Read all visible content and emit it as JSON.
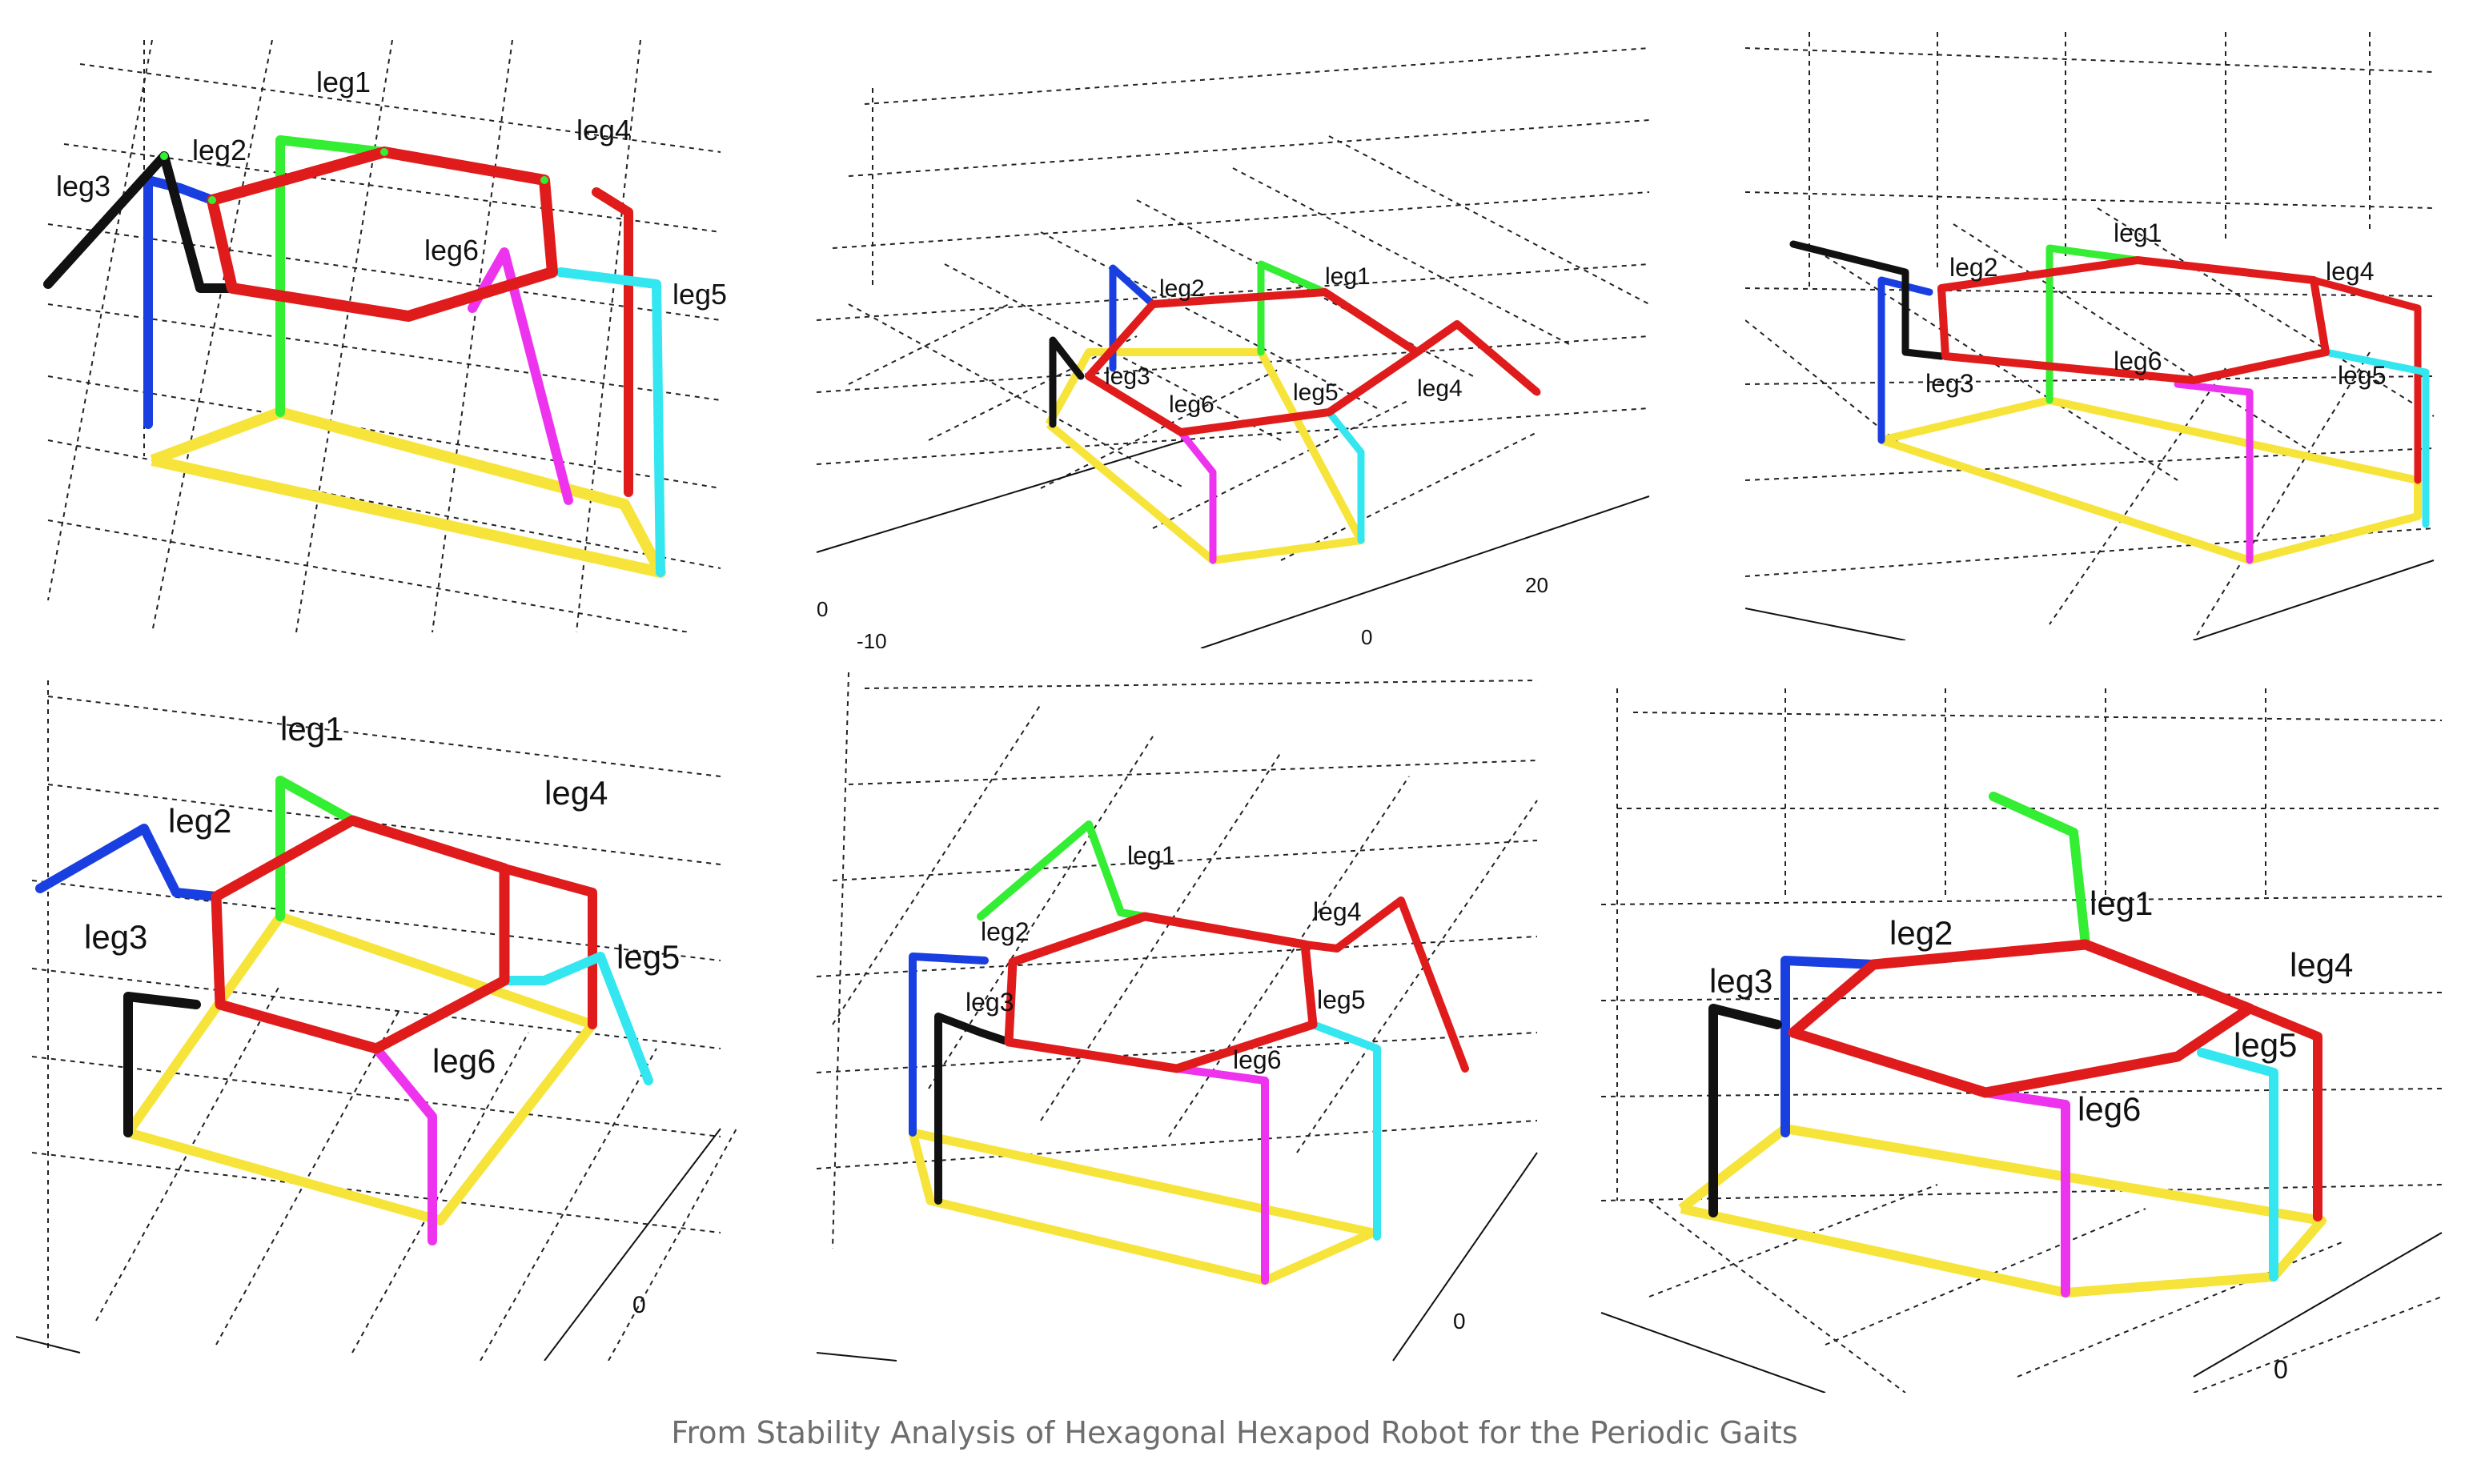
{
  "caption": "From Stability Analysis of Hexagonal Hexapod Robot for the Periodic Gaits",
  "colors": {
    "leg1": "#33ee33",
    "leg2": "#1a3fe0",
    "leg3": "#111111",
    "leg4": "#e01b1b",
    "leg5": "#33e6f0",
    "leg6": "#ee33ee",
    "body": "#e01b1b",
    "support_polygon": "#f7e43a",
    "grid": "#222222"
  },
  "panels": [
    {
      "id": "top-left",
      "labels": {
        "leg1": "leg1",
        "leg2": "leg2",
        "leg3": "leg3",
        "leg4": "leg4",
        "leg5": "leg5",
        "leg6": "leg6"
      },
      "ticks": []
    },
    {
      "id": "top-middle",
      "labels": {
        "leg1": "leg1",
        "leg2": "leg2",
        "leg3": "leg3",
        "leg4": "leg4",
        "leg5": "leg5",
        "leg6": "leg6"
      },
      "ticks": [
        "0",
        "-10",
        "0",
        "20"
      ]
    },
    {
      "id": "top-right",
      "labels": {
        "leg1": "leg1",
        "leg2": "leg2",
        "leg3": "leg3",
        "leg4": "leg4",
        "leg5": "leg5",
        "leg6": "leg6"
      },
      "ticks": []
    },
    {
      "id": "bottom-left",
      "labels": {
        "leg1": "leg1",
        "leg2": "leg2",
        "leg3": "leg3",
        "leg4": "leg4",
        "leg5": "leg5",
        "leg6": "leg6"
      },
      "ticks": [
        "0"
      ]
    },
    {
      "id": "bottom-middle",
      "labels": {
        "leg1": "leg1",
        "leg2": "leg2",
        "leg3": "leg3",
        "leg4": "leg4",
        "leg5": "leg5",
        "leg6": "leg6"
      },
      "ticks": [
        "0"
      ]
    },
    {
      "id": "bottom-right",
      "labels": {
        "leg1": "leg1",
        "leg2": "leg2",
        "leg3": "leg3",
        "leg4": "leg4",
        "leg5": "leg5",
        "leg6": "leg6"
      },
      "ticks": [
        "0"
      ]
    }
  ]
}
